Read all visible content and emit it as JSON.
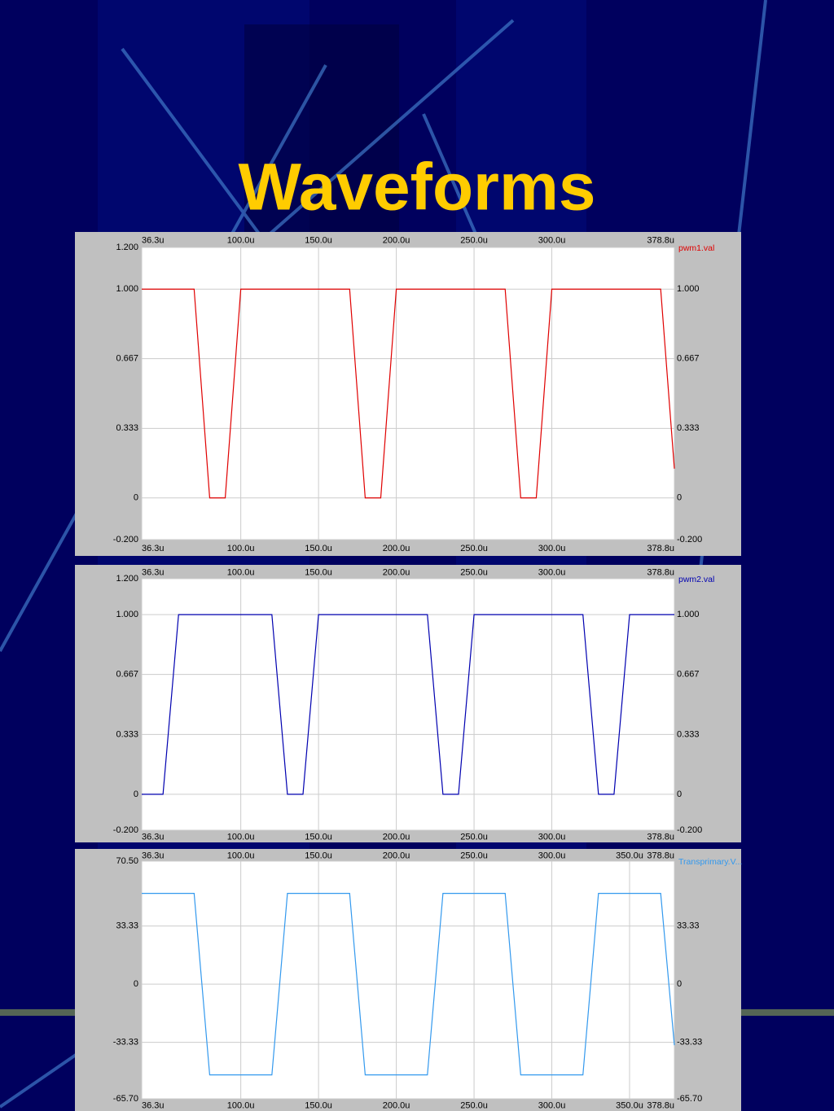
{
  "title": "Waveforms",
  "chart_data": [
    {
      "type": "line",
      "x": [
        36.3,
        70,
        80,
        90,
        100,
        170,
        180,
        190,
        200,
        270,
        280,
        290,
        300,
        370,
        378.8
      ],
      "series": [
        {
          "name": "pwm1.val",
          "color": "#e00000",
          "values": [
            1,
            1,
            0,
            0,
            1,
            1,
            0,
            0,
            1,
            1,
            0,
            0,
            1,
            1,
            0.14
          ]
        }
      ],
      "xlim": [
        36.3,
        378.8
      ],
      "xticks": [
        {
          "value": 36.3,
          "label": "36.3u"
        },
        {
          "value": 100,
          "label": "100.0u"
        },
        {
          "value": 150,
          "label": "150.0u"
        },
        {
          "value": 200,
          "label": "200.0u"
        },
        {
          "value": 250,
          "label": "250.0u"
        },
        {
          "value": 300,
          "label": "300.0u"
        },
        {
          "value": 378.8,
          "label": "378.8u"
        }
      ],
      "ylim": [
        -0.2,
        1.2
      ],
      "yticks": [
        {
          "value": 1.2,
          "label": "1.200"
        },
        {
          "value": 1,
          "label": "1.000"
        },
        0.667,
        0.333,
        0,
        {
          "value": -0.2,
          "label": "-0.200"
        }
      ],
      "grid": true
    },
    {
      "type": "line",
      "x": [
        36.3,
        50,
        60,
        120,
        130,
        140,
        150,
        220,
        230,
        240,
        250,
        320,
        330,
        340,
        350,
        378.8
      ],
      "series": [
        {
          "name": "pwm2.val",
          "color": "#0000b0",
          "values": [
            0,
            0,
            1,
            1,
            0,
            0,
            1,
            1,
            0,
            0,
            1,
            1,
            0,
            0,
            1,
            1
          ]
        }
      ],
      "xlim": [
        36.3,
        378.8
      ],
      "xticks": [
        {
          "value": 36.3,
          "label": "36.3u"
        },
        {
          "value": 100,
          "label": "100.0u"
        },
        {
          "value": 150,
          "label": "150.0u"
        },
        {
          "value": 200,
          "label": "200.0u"
        },
        {
          "value": 250,
          "label": "250.0u"
        },
        {
          "value": 300,
          "label": "300.0u"
        },
        {
          "value": 378.8,
          "label": "378.8u"
        }
      ],
      "ylim": [
        -0.2,
        1.2
      ],
      "yticks": [
        {
          "value": 1.2,
          "label": "1.200"
        },
        {
          "value": 1,
          "label": "1.000"
        },
        0.667,
        0.333,
        0,
        {
          "value": -0.2,
          "label": "-0.200"
        }
      ],
      "grid": true
    },
    {
      "type": "line",
      "x": [
        36.3,
        70,
        80,
        120,
        130,
        170,
        180,
        220,
        230,
        270,
        280,
        320,
        330,
        370,
        378.8
      ],
      "series": [
        {
          "name": "Transprimary.V...",
          "color": "#3399ee",
          "values": [
            52,
            52,
            -52,
            -52,
            52,
            52,
            -52,
            -52,
            52,
            52,
            -52,
            -52,
            52,
            52,
            -35
          ]
        }
      ],
      "xlim": [
        36.3,
        378.8
      ],
      "xticks": [
        {
          "value": 36.3,
          "label": "36.3u"
        },
        {
          "value": 100,
          "label": "100.0u"
        },
        {
          "value": 150,
          "label": "150.0u"
        },
        {
          "value": 200,
          "label": "200.0u"
        },
        {
          "value": 250,
          "label": "250.0u"
        },
        {
          "value": 300,
          "label": "300.0u"
        },
        {
          "value": 350,
          "label": "350.0u"
        },
        {
          "value": 378.8,
          "label": "378.8u"
        }
      ],
      "ylim": [
        -65.7,
        70.5
      ],
      "yticks": [
        {
          "value": 70.5,
          "label": "70.50"
        },
        33.33,
        0,
        -33.33,
        {
          "value": -65.7,
          "label": "-65.70"
        }
      ],
      "grid": true
    }
  ]
}
